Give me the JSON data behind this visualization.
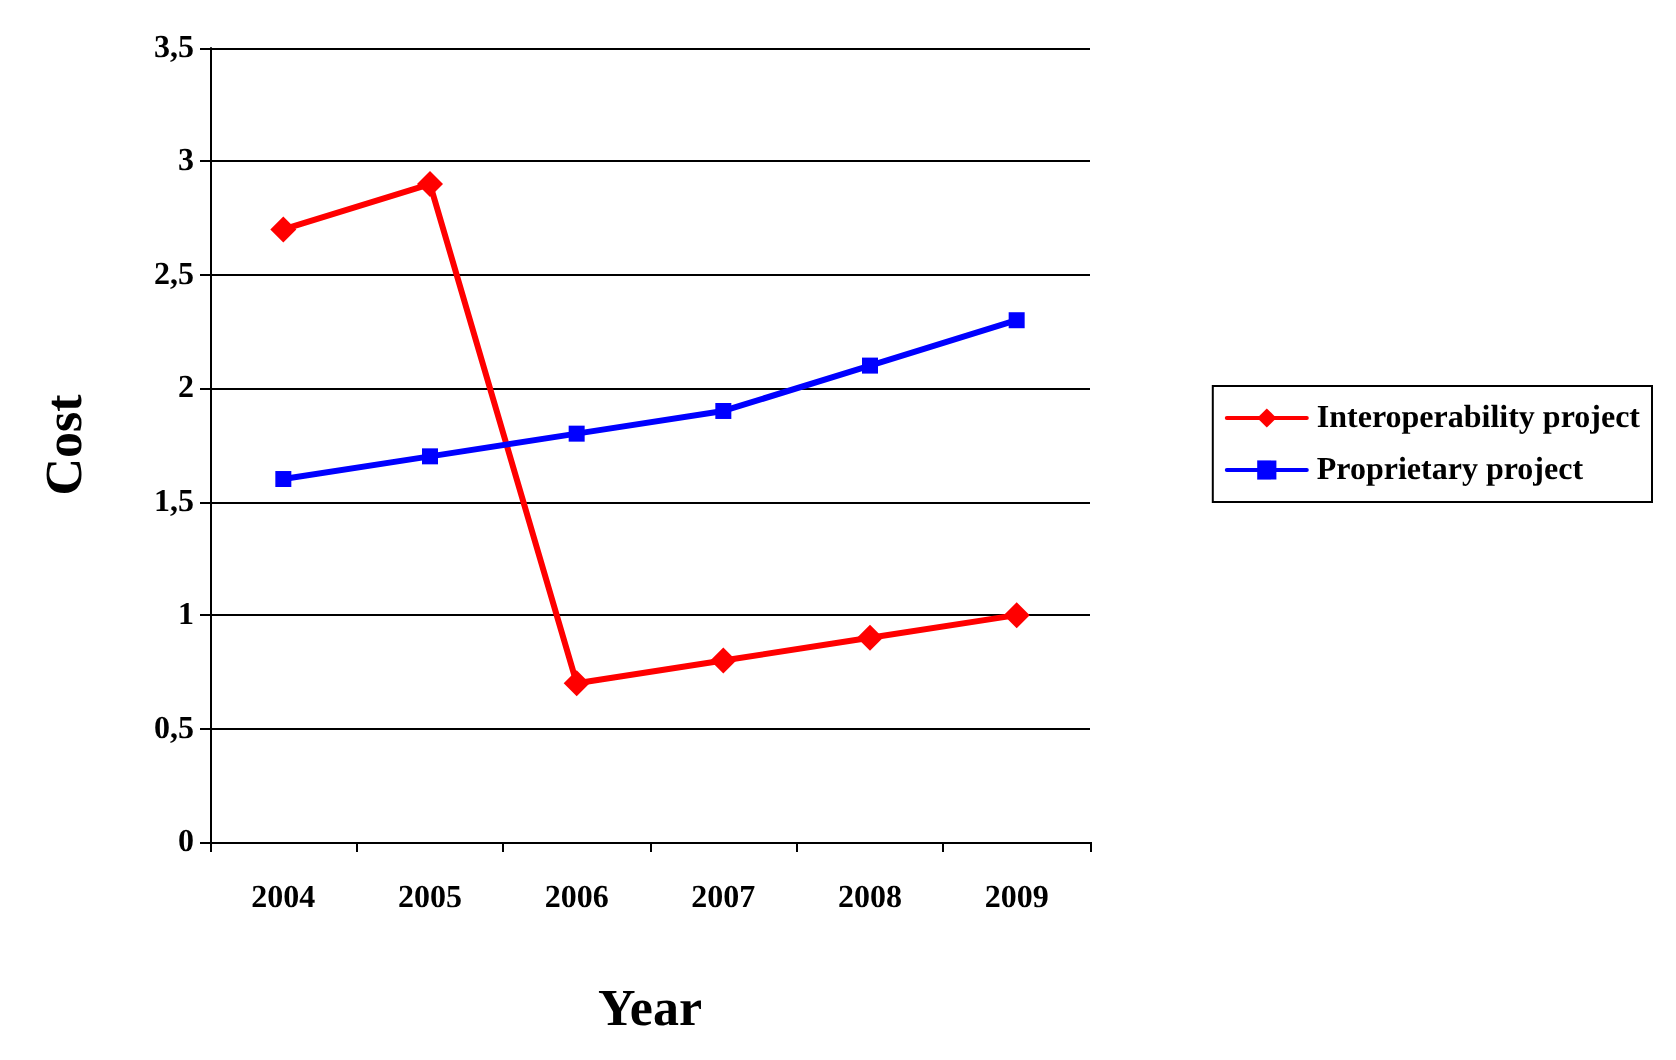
{
  "chart_data": {
    "type": "line",
    "xlabel": "Year",
    "ylabel": "Cost",
    "categories": [
      "2004",
      "2005",
      "2006",
      "2007",
      "2008",
      "2009"
    ],
    "series": [
      {
        "name": "Interoperability project",
        "color": "#ff0000",
        "marker": "diamond",
        "values": [
          2.7,
          2.9,
          0.7,
          0.8,
          0.9,
          1.0
        ]
      },
      {
        "name": "Proprietary project",
        "color": "#0000ff",
        "marker": "square",
        "values": [
          1.6,
          1.7,
          1.8,
          1.9,
          2.1,
          2.3
        ]
      }
    ],
    "ylim": [
      0,
      3.5
    ],
    "yticks": [
      0,
      {
        "value": 0.5,
        "label": "0,5"
      },
      1,
      {
        "value": 1.5,
        "label": "1,5"
      },
      2,
      {
        "value": 2.5,
        "label": "2,5"
      },
      3,
      {
        "value": 3.5,
        "label": "3,5"
      }
    ],
    "grid": "y",
    "legend": "right",
    "line_style": "solid"
  }
}
